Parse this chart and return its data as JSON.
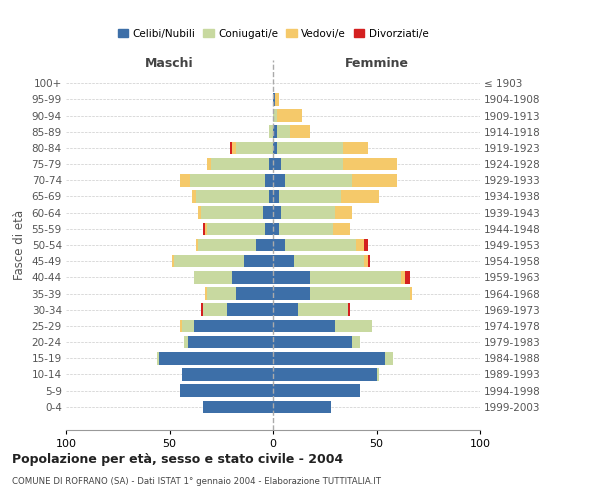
{
  "age_groups": [
    "0-4",
    "5-9",
    "10-14",
    "15-19",
    "20-24",
    "25-29",
    "30-34",
    "35-39",
    "40-44",
    "45-49",
    "50-54",
    "55-59",
    "60-64",
    "65-69",
    "70-74",
    "75-79",
    "80-84",
    "85-89",
    "90-94",
    "95-99",
    "100+"
  ],
  "birth_years": [
    "1999-2003",
    "1994-1998",
    "1989-1993",
    "1984-1988",
    "1979-1983",
    "1974-1978",
    "1969-1973",
    "1964-1968",
    "1959-1963",
    "1954-1958",
    "1949-1953",
    "1944-1948",
    "1939-1943",
    "1934-1938",
    "1929-1933",
    "1924-1928",
    "1919-1923",
    "1914-1918",
    "1909-1913",
    "1904-1908",
    "≤ 1903"
  ],
  "colors": {
    "celibi": "#3d6fa8",
    "coniugati": "#c8d9a0",
    "vedovi": "#f5c96a",
    "divorziati": "#d42020"
  },
  "maschi": {
    "celibi": [
      34,
      45,
      44,
      55,
      41,
      38,
      22,
      18,
      20,
      14,
      8,
      4,
      5,
      2,
      4,
      2,
      0,
      0,
      0,
      0,
      0
    ],
    "coniugati": [
      0,
      0,
      0,
      1,
      2,
      6,
      12,
      14,
      18,
      34,
      28,
      28,
      30,
      35,
      36,
      28,
      18,
      2,
      0,
      0,
      0
    ],
    "vedovi": [
      0,
      0,
      0,
      0,
      0,
      1,
      0,
      1,
      0,
      1,
      1,
      1,
      1,
      2,
      5,
      2,
      2,
      0,
      0,
      0,
      0
    ],
    "divorziati": [
      0,
      0,
      0,
      0,
      0,
      0,
      1,
      0,
      0,
      0,
      0,
      1,
      0,
      0,
      0,
      0,
      1,
      0,
      0,
      0,
      0
    ]
  },
  "femmine": {
    "celibi": [
      28,
      42,
      50,
      54,
      38,
      30,
      12,
      18,
      18,
      10,
      6,
      3,
      4,
      3,
      6,
      4,
      2,
      2,
      0,
      1,
      0
    ],
    "coniugati": [
      0,
      0,
      1,
      4,
      4,
      18,
      24,
      48,
      44,
      34,
      34,
      26,
      26,
      30,
      32,
      30,
      32,
      6,
      2,
      0,
      0
    ],
    "vedovi": [
      0,
      0,
      0,
      0,
      0,
      0,
      0,
      1,
      2,
      2,
      4,
      8,
      8,
      18,
      22,
      26,
      12,
      10,
      12,
      2,
      0
    ],
    "divorziati": [
      0,
      0,
      0,
      0,
      0,
      0,
      1,
      0,
      2,
      1,
      2,
      0,
      0,
      0,
      0,
      0,
      0,
      0,
      0,
      0,
      0
    ]
  },
  "title": "Popolazione per età, sesso e stato civile - 2004",
  "subtitle": "COMUNE DI ROFRANO (SA) - Dati ISTAT 1° gennaio 2004 - Elaborazione TUTTITALIA.IT",
  "xlabel_maschi": "Maschi",
  "xlabel_femmine": "Femmine",
  "ylabel_left": "Fasce di età",
  "xlim": 100,
  "legend_labels": [
    "Celibi/Nubili",
    "Coniugati/e",
    "Vedovi/e",
    "Divorziati/e"
  ]
}
